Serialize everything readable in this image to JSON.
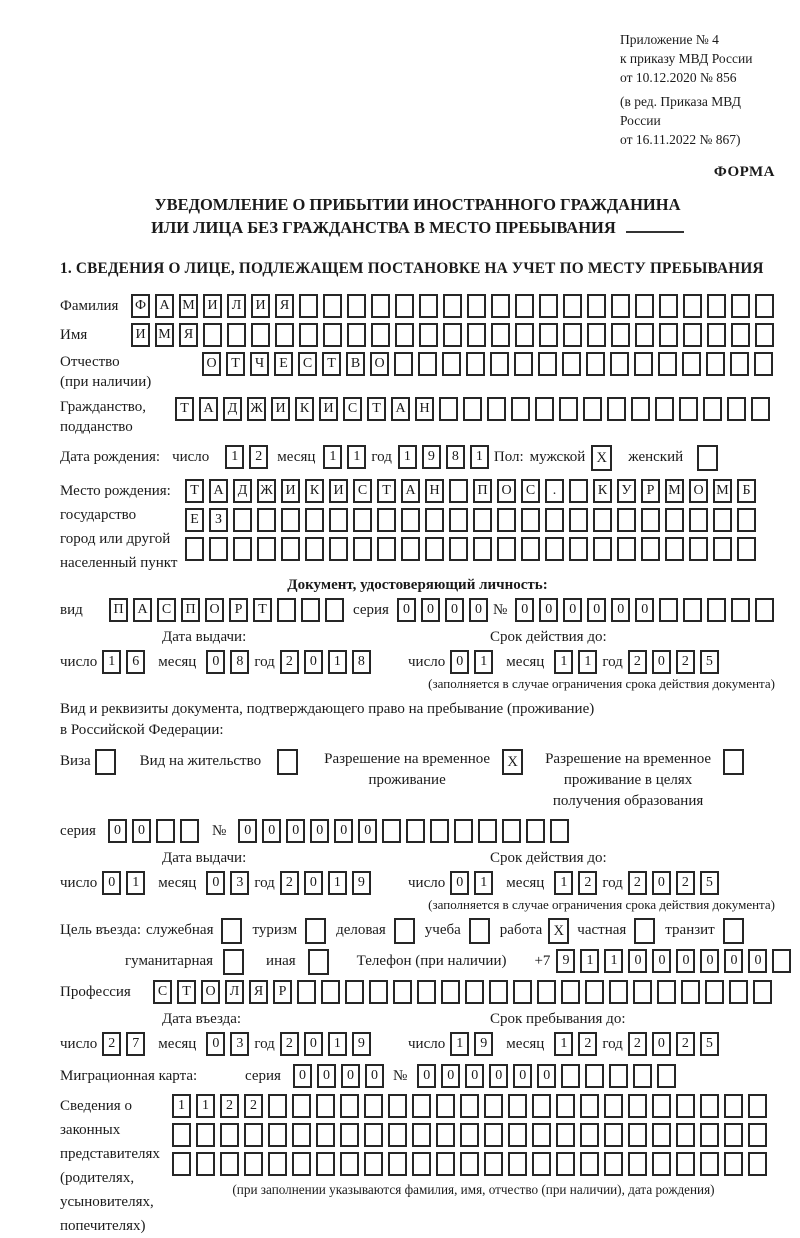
{
  "marks": {
    "x": "X"
  },
  "labels": {
    "day": "число",
    "month": "месяц",
    "year": "год",
    "series": "серия",
    "number": "№"
  },
  "header": {
    "appendix_line1": "Приложение № 4",
    "appendix_line2": "к приказу МВД России",
    "appendix_line3": "от 10.12.2020 № 856",
    "revision_line1": "(в ред. Приказа МВД России",
    "revision_line2": "от 16.11.2022 № 867)",
    "form_label": "ФОРМА"
  },
  "title": {
    "line1": "УВЕДОМЛЕНИЕ О ПРИБЫТИИ ИНОСТРАННОГО ГРАЖДАНИНА",
    "line2": "ИЛИ ЛИЦА БЕЗ ГРАЖДАНСТВА В МЕСТО ПРЕБЫВАНИЯ"
  },
  "section1_heading": "1. СВЕДЕНИЯ О ЛИЦЕ, ПОДЛЕЖАЩЕМ ПОСТАНОВКЕ НА УЧЕТ ПО МЕСТУ ПРЕБЫВАНИЯ",
  "fields": {
    "surname": {
      "label": "Фамилия",
      "value": "ФАМИЛИЯ",
      "len": 27
    },
    "firstname": {
      "label": "Имя",
      "value": "ИМЯ",
      "len": 27
    },
    "patronymic": {
      "label1": "Отчество",
      "label2": "(при наличии)",
      "value": "ОТЧЕСТВО",
      "len": 24
    },
    "citizenship": {
      "label1": "Гражданство,",
      "label2": "подданство",
      "value": "ТАДЖИКИСТАН",
      "len": 25
    },
    "birthdate": {
      "label": "Дата рождения:",
      "day": {
        "value": "12",
        "len": 2
      },
      "month": {
        "value": "11",
        "len": 2
      },
      "year": {
        "value": "1981",
        "len": 4
      },
      "sex_label": "Пол:",
      "male_label": "мужской",
      "male_checked": true,
      "female_label": "женский",
      "female_checked": false
    },
    "birthplace": {
      "label1": "Место рождения:",
      "label2": "государство",
      "label3": "город или другой",
      "label4": "населенный пункт",
      "row1": {
        "value": "ТАДЖИКИСТАН ПОС. КУРМОМБ",
        "len": 24
      },
      "row2": {
        "value": "ЕЗ",
        "len": 24
      },
      "row3": {
        "value": "",
        "len": 24
      }
    },
    "identity_doc": {
      "heading": "Документ, удостоверяющий личность:",
      "kind_label": "вид",
      "kind": {
        "value": "ПАСПОРТ",
        "len": 10
      },
      "series": {
        "value": "0000",
        "len": 4
      },
      "number": {
        "value": "000000",
        "len": 11
      },
      "issue_title": "Дата выдачи:",
      "issue_day": {
        "value": "16",
        "len": 2
      },
      "issue_month": {
        "value": "08",
        "len": 2
      },
      "issue_year": {
        "value": "2018",
        "len": 4
      },
      "valid_title": "Срок действия до:",
      "valid_day": {
        "value": "01",
        "len": 2
      },
      "valid_month": {
        "value": "11",
        "len": 2
      },
      "valid_year": {
        "value": "2025",
        "len": 4
      },
      "note": "(заполняется в случае ограничения срока действия документа)"
    },
    "stay_doc": {
      "intro_line1": "Вид и реквизиты документа, подтверждающего право на пребывание (проживание)",
      "intro_line2": "в Российской Федерации:",
      "visa_label": "Виза",
      "visa_checked": false,
      "residence_label": "Вид на жительство",
      "residence_checked": false,
      "rvp_line1": "Разрешение на временное",
      "rvp_line2": "проживание",
      "rvp_checked": true,
      "rvp_edu_line1": "Разрешение на временное",
      "rvp_edu_line2": "проживание в целях",
      "rvp_edu_line3": "получения образования",
      "rvp_edu_checked": false,
      "series": {
        "value": "00",
        "len": 4
      },
      "number": {
        "value": "000000",
        "len": 14
      },
      "issue_title": "Дата выдачи:",
      "issue_day": {
        "value": "01",
        "len": 2
      },
      "issue_month": {
        "value": "03",
        "len": 2
      },
      "issue_year": {
        "value": "2019",
        "len": 4
      },
      "valid_title": "Срок действия до:",
      "valid_day": {
        "value": "01",
        "len": 2
      },
      "valid_month": {
        "value": "12",
        "len": 2
      },
      "valid_year": {
        "value": "2025",
        "len": 4
      },
      "note": "(заполняется в случае ограничения срока действия документа)"
    },
    "purpose": {
      "label": "Цель въезда:",
      "options_line1": [
        {
          "label": "служебная",
          "checked": false
        },
        {
          "label": "туризм",
          "checked": false
        },
        {
          "label": "деловая",
          "checked": false
        },
        {
          "label": "учеба",
          "checked": false
        },
        {
          "label": "работа",
          "checked": true
        },
        {
          "label": "частная",
          "checked": false
        },
        {
          "label": "транзит",
          "checked": false
        }
      ],
      "options_line2": [
        {
          "label": "гуманитарная",
          "checked": false
        },
        {
          "label": "иная",
          "checked": false
        }
      ],
      "phone_label": "Телефон (при наличии)",
      "phone_prefix": "+7",
      "phone": {
        "value": "911000000",
        "len": 10
      }
    },
    "profession": {
      "label": "Профессия",
      "value": "СТОЛЯР",
      "len": 26
    },
    "entry": {
      "title": "Дата въезда:",
      "day": {
        "value": "27",
        "len": 2
      },
      "month": {
        "value": "03",
        "len": 2
      },
      "year": {
        "value": "2019",
        "len": 4
      }
    },
    "stay_until": {
      "title": "Срок пребывания до:",
      "day": {
        "value": "19",
        "len": 2
      },
      "month": {
        "value": "12",
        "len": 2
      },
      "year": {
        "value": "2025",
        "len": 4
      }
    },
    "migration_card": {
      "label": "Миграционная карта:",
      "series": {
        "value": "0000",
        "len": 4
      },
      "number": {
        "value": "000000",
        "len": 11
      }
    },
    "representatives": {
      "label1": "Сведения о",
      "label2": "законных",
      "label3": "представителях",
      "label4": "(родителях,",
      "label5": "усыновителях,",
      "label6": "попечителях)",
      "row1": {
        "value": "1122",
        "len": 25
      },
      "row2": {
        "value": "",
        "len": 25
      },
      "row3": {
        "value": "",
        "len": 25
      },
      "caption": "(при заполнении указываются фамилия, имя, отчество (при наличии), дата рождения)"
    }
  }
}
